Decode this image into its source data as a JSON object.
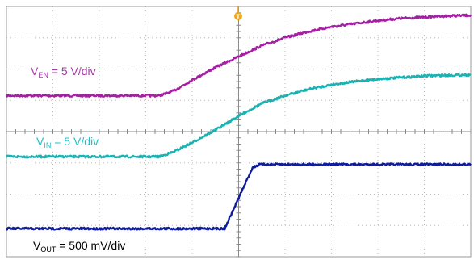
{
  "chart_data": {
    "type": "line",
    "title": "",
    "xlabel": "",
    "ylabel": "",
    "grid": true,
    "grid_divisions": {
      "x": 10,
      "y": 8
    },
    "x_units": "div",
    "xlim": [
      0,
      10
    ],
    "ylim": [
      0,
      8
    ],
    "trigger_marker": "T",
    "colors": {
      "en": "#a41fa3",
      "in": "#1ab2b2",
      "out": "#101c9c",
      "grid": "#b8b8b8"
    },
    "series": [
      {
        "key": "en",
        "name_main": "V",
        "name_sub": "EN",
        "name_rest": " = 5 V/div",
        "x": [
          0,
          3.3,
          3.6,
          4.0,
          4.5,
          5.0,
          5.5,
          6.0,
          6.5,
          7.0,
          7.5,
          8.0,
          8.5,
          9.0,
          9.5,
          10.0
        ],
        "y": [
          5.15,
          5.15,
          5.3,
          5.65,
          6.05,
          6.4,
          6.75,
          7.0,
          7.2,
          7.35,
          7.45,
          7.55,
          7.62,
          7.66,
          7.7,
          7.72
        ]
      },
      {
        "key": "in",
        "name_main": "V",
        "name_sub": "IN",
        "name_rest": " = 5 V/div",
        "x": [
          0,
          3.3,
          3.6,
          4.0,
          4.5,
          5.0,
          5.5,
          6.0,
          6.5,
          7.0,
          7.5,
          8.0,
          8.5,
          9.0,
          9.5,
          10.0
        ],
        "y": [
          3.2,
          3.2,
          3.35,
          3.65,
          4.05,
          4.5,
          4.9,
          5.15,
          5.35,
          5.5,
          5.6,
          5.68,
          5.73,
          5.78,
          5.8,
          5.82
        ]
      },
      {
        "key": "out",
        "name_main": "V",
        "name_sub": "OUT",
        "name_rest": " = 500 mV/div",
        "x": [
          0,
          4.7,
          5.3,
          5.45,
          10.0
        ],
        "y": [
          0.9,
          0.9,
          2.85,
          2.95,
          2.95
        ]
      }
    ]
  }
}
